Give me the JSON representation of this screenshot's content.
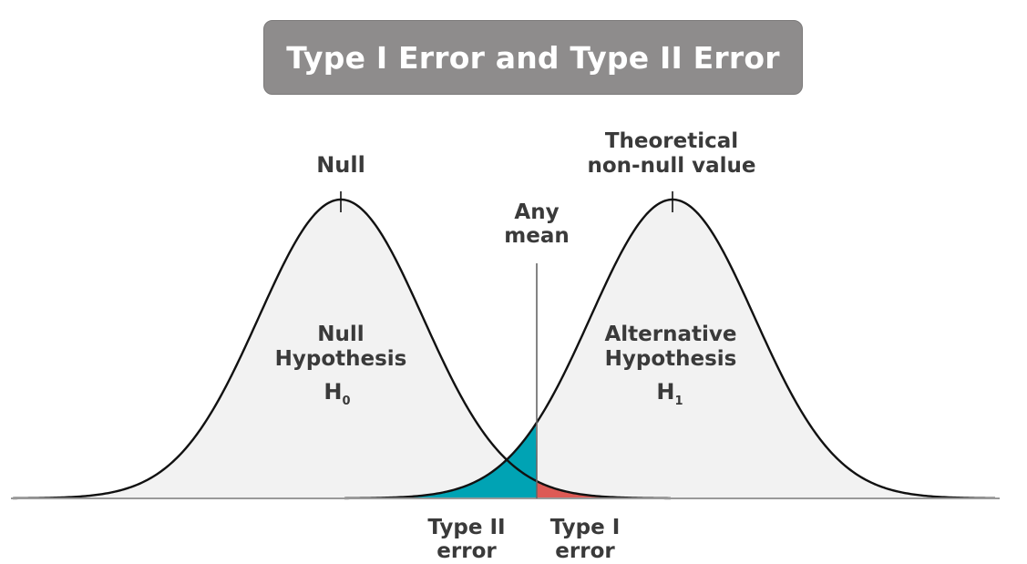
{
  "title": "Type I Error and Type II Error",
  "labels": {
    "null_peak": "Null",
    "theoretical_line1": "Theoretical",
    "theoretical_line2": "non-null value",
    "any_mean_line1": "Any",
    "any_mean_line2": "mean",
    "null_hyp_line1": "Null",
    "null_hyp_line2": "Hypothesis",
    "null_hyp_symbol": "H",
    "null_hyp_subscript": "0",
    "alt_hyp_line1": "Alternative",
    "alt_hyp_line2": "Hypothesis",
    "alt_hyp_symbol": "H",
    "alt_hyp_subscript": "1",
    "type2_line1": "Type II",
    "type2_line2": "error",
    "type1_line1": "Type I",
    "type1_line2": "error"
  },
  "colors": {
    "title_bg": "#8e8c8c",
    "title_text": "#ffffff",
    "curve": "#111111",
    "curve_fill": "#f2f2f2",
    "type2_fill": "#00a3b4",
    "type1_fill": "#dd5a55",
    "type2_text": "#0aa6b8",
    "type1_text": "#e05a55",
    "label_text": "#3a3a3a"
  }
}
